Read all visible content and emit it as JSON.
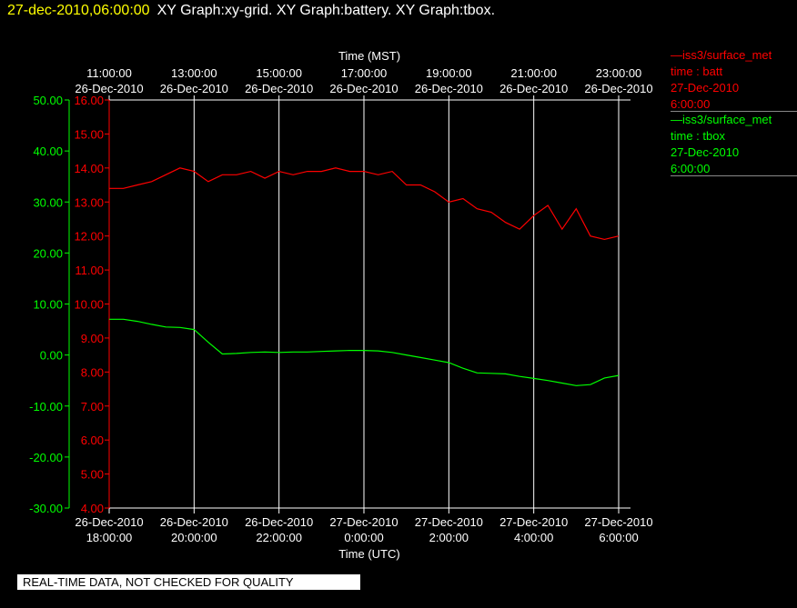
{
  "header": {
    "timestamp": "27-dec-2010,06:00:00",
    "title": "XY Graph:xy-grid.  XY Graph:battery.  XY Graph:tbox."
  },
  "legend": {
    "batt": {
      "source": "iss3/surface_met",
      "var": "time : batt",
      "date": "27-Dec-2010",
      "time": "6:00:00",
      "color": "#ff0000"
    },
    "tbox": {
      "source": "iss3/surface_met",
      "var": "time : tbox",
      "date": "27-Dec-2010",
      "time": "6:00:00",
      "color": "#00ff00"
    }
  },
  "quality_note": "REAL-TIME DATA, NOT CHECKED FOR QUALITY",
  "chart_data": {
    "type": "line",
    "x_top": {
      "label": "Time (MST)",
      "ticks": [
        {
          "time": "11:00:00",
          "date": "26-Dec-2010"
        },
        {
          "time": "13:00:00",
          "date": "26-Dec-2010"
        },
        {
          "time": "15:00:00",
          "date": "26-Dec-2010"
        },
        {
          "time": "17:00:00",
          "date": "26-Dec-2010"
        },
        {
          "time": "19:00:00",
          "date": "26-Dec-2010"
        },
        {
          "time": "21:00:00",
          "date": "26-Dec-2010"
        },
        {
          "time": "23:00:00",
          "date": "26-Dec-2010"
        }
      ]
    },
    "x_bottom": {
      "label": "Time (UTC)",
      "range": [
        "2010-12-26 18:00:00",
        "2010-12-27 06:00:00"
      ],
      "ticks": [
        {
          "date": "26-Dec-2010",
          "time": "18:00:00"
        },
        {
          "date": "26-Dec-2010",
          "time": "20:00:00"
        },
        {
          "date": "26-Dec-2010",
          "time": "22:00:00"
        },
        {
          "date": "27-Dec-2010",
          "time": "0:00:00"
        },
        {
          "date": "27-Dec-2010",
          "time": "2:00:00"
        },
        {
          "date": "27-Dec-2010",
          "time": "4:00:00"
        },
        {
          "date": "27-Dec-2010",
          "time": "6:00:00"
        }
      ]
    },
    "y_tbox": {
      "color": "#00ff00",
      "range": [
        -30,
        50
      ],
      "ticks": [
        "50.00",
        "40.00",
        "30.00",
        "20.00",
        "10.00",
        "0.00",
        "-10.00",
        "-20.00",
        "-30.00"
      ]
    },
    "y_batt": {
      "color": "#ff0000",
      "range": [
        4,
        16
      ],
      "ticks": [
        "16.00",
        "15.00",
        "14.00",
        "13.00",
        "12.00",
        "11.00",
        "10.00",
        "9.00",
        "8.00",
        "7.00",
        "6.00",
        "5.00",
        "4.00"
      ]
    },
    "grid": "vertical",
    "series": [
      {
        "name": "time : batt",
        "color": "#ff0000",
        "axis": "y_batt",
        "x": [
          "2010-12-26 18:00",
          "2010-12-26 18:20",
          "2010-12-26 18:40",
          "2010-12-26 19:00",
          "2010-12-26 19:20",
          "2010-12-26 19:40",
          "2010-12-26 20:00",
          "2010-12-26 20:20",
          "2010-12-26 20:40",
          "2010-12-26 21:00",
          "2010-12-26 21:20",
          "2010-12-26 21:40",
          "2010-12-26 22:00",
          "2010-12-26 22:20",
          "2010-12-26 22:40",
          "2010-12-26 23:00",
          "2010-12-26 23:20",
          "2010-12-26 23:40",
          "2010-12-27 00:00",
          "2010-12-27 00:20",
          "2010-12-27 00:40",
          "2010-12-27 01:00",
          "2010-12-27 01:20",
          "2010-12-27 01:40",
          "2010-12-27 02:00",
          "2010-12-27 02:20",
          "2010-12-27 02:40",
          "2010-12-27 03:00",
          "2010-12-27 03:20",
          "2010-12-27 03:40",
          "2010-12-27 04:00",
          "2010-12-27 04:20",
          "2010-12-27 04:40",
          "2010-12-27 05:00",
          "2010-12-27 05:20",
          "2010-12-27 05:40",
          "2010-12-27 06:00"
        ],
        "values": [
          13.4,
          13.4,
          13.5,
          13.6,
          13.8,
          14.0,
          13.9,
          13.6,
          13.8,
          13.8,
          13.9,
          13.7,
          13.9,
          13.8,
          13.9,
          13.9,
          14.0,
          13.9,
          13.9,
          13.8,
          13.9,
          13.5,
          13.5,
          13.3,
          13.0,
          13.1,
          12.8,
          12.7,
          12.4,
          12.2,
          12.6,
          12.9,
          12.2,
          12.8,
          12.0,
          11.9,
          12.0
        ]
      },
      {
        "name": "time : tbox",
        "color": "#00ff00",
        "axis": "y_tbox",
        "x": [
          "2010-12-26 18:00",
          "2010-12-26 18:20",
          "2010-12-26 18:40",
          "2010-12-26 19:00",
          "2010-12-26 19:20",
          "2010-12-26 19:40",
          "2010-12-26 20:00",
          "2010-12-26 20:20",
          "2010-12-26 20:40",
          "2010-12-26 21:00",
          "2010-12-26 21:20",
          "2010-12-26 21:40",
          "2010-12-26 22:00",
          "2010-12-26 22:20",
          "2010-12-26 22:40",
          "2010-12-26 23:00",
          "2010-12-26 23:20",
          "2010-12-26 23:40",
          "2010-12-27 00:00",
          "2010-12-27 00:20",
          "2010-12-27 00:40",
          "2010-12-27 01:00",
          "2010-12-27 01:20",
          "2010-12-27 01:40",
          "2010-12-27 02:00",
          "2010-12-27 02:20",
          "2010-12-27 02:40",
          "2010-12-27 03:00",
          "2010-12-27 03:20",
          "2010-12-27 03:40",
          "2010-12-27 04:00",
          "2010-12-27 04:20",
          "2010-12-27 04:40",
          "2010-12-27 05:00",
          "2010-12-27 05:20",
          "2010-12-27 05:40",
          "2010-12-27 06:00"
        ],
        "values": [
          7.0,
          7.0,
          6.6,
          6.0,
          5.5,
          5.4,
          5.0,
          2.5,
          0.2,
          0.3,
          0.5,
          0.6,
          0.5,
          0.6,
          0.6,
          0.7,
          0.8,
          0.9,
          0.9,
          0.8,
          0.5,
          0.0,
          -0.5,
          -1.0,
          -1.5,
          -2.6,
          -3.5,
          -3.6,
          -3.7,
          -4.2,
          -4.6,
          -5.0,
          -5.5,
          -6.0,
          -5.8,
          -4.5,
          -4.0
        ]
      }
    ]
  }
}
